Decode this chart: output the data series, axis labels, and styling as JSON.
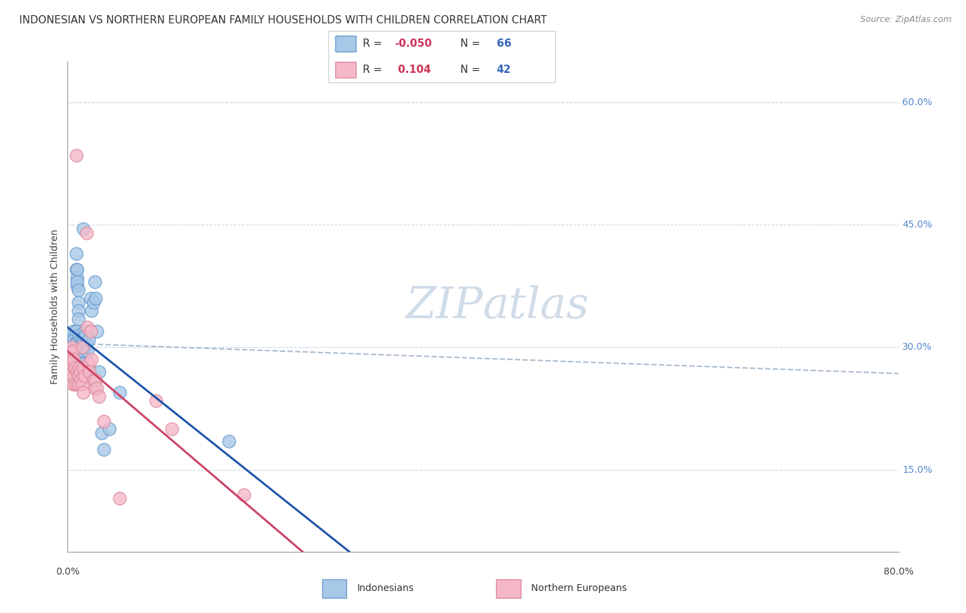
{
  "title": "INDONESIAN VS NORTHERN EUROPEAN FAMILY HOUSEHOLDS WITH CHILDREN CORRELATION CHART",
  "source": "Source: ZipAtlas.com",
  "ylabel": "Family Households with Children",
  "y_ticks_right": [
    "15.0%",
    "30.0%",
    "45.0%",
    "60.0%"
  ],
  "y_tick_values": [
    0.15,
    0.3,
    0.45,
    0.6
  ],
  "xlim": [
    0.0,
    0.8
  ],
  "ylim": [
    0.05,
    0.65
  ],
  "indonesian_color": "#a8c8e8",
  "northern_european_color": "#f4b8c8",
  "indonesian_edge_color": "#6699cc",
  "northern_european_edge_color": "#dd8899",
  "regression_blue": "#2255aa",
  "regression_pink": "#cc4466",
  "reference_line_color": "#aabbcc",
  "watermark_color": "#d0dce8",
  "background_color": "#ffffff",
  "indonesian_points": [
    [
      0.002,
      0.305
    ],
    [
      0.002,
      0.295
    ],
    [
      0.002,
      0.285
    ],
    [
      0.003,
      0.31
    ],
    [
      0.003,
      0.295
    ],
    [
      0.003,
      0.3
    ],
    [
      0.004,
      0.315
    ],
    [
      0.004,
      0.305
    ],
    [
      0.004,
      0.295
    ],
    [
      0.005,
      0.32
    ],
    [
      0.005,
      0.3
    ],
    [
      0.005,
      0.285
    ],
    [
      0.005,
      0.275
    ],
    [
      0.006,
      0.31
    ],
    [
      0.006,
      0.295
    ],
    [
      0.006,
      0.28
    ],
    [
      0.007,
      0.305
    ],
    [
      0.007,
      0.295
    ],
    [
      0.007,
      0.285
    ],
    [
      0.007,
      0.275
    ],
    [
      0.008,
      0.32
    ],
    [
      0.008,
      0.305
    ],
    [
      0.008,
      0.395
    ],
    [
      0.008,
      0.415
    ],
    [
      0.009,
      0.385
    ],
    [
      0.009,
      0.375
    ],
    [
      0.009,
      0.395
    ],
    [
      0.009,
      0.38
    ],
    [
      0.01,
      0.37
    ],
    [
      0.01,
      0.355
    ],
    [
      0.01,
      0.345
    ],
    [
      0.01,
      0.335
    ],
    [
      0.011,
      0.315
    ],
    [
      0.011,
      0.3
    ],
    [
      0.011,
      0.295
    ],
    [
      0.011,
      0.285
    ],
    [
      0.012,
      0.31
    ],
    [
      0.012,
      0.295
    ],
    [
      0.012,
      0.28
    ],
    [
      0.013,
      0.305
    ],
    [
      0.013,
      0.29
    ],
    [
      0.013,
      0.275
    ],
    [
      0.014,
      0.31
    ],
    [
      0.014,
      0.295
    ],
    [
      0.014,
      0.28
    ],
    [
      0.015,
      0.445
    ],
    [
      0.015,
      0.305
    ],
    [
      0.015,
      0.27
    ],
    [
      0.016,
      0.32
    ],
    [
      0.016,
      0.3
    ],
    [
      0.017,
      0.315
    ],
    [
      0.018,
      0.305
    ],
    [
      0.019,
      0.295
    ],
    [
      0.02,
      0.31
    ],
    [
      0.022,
      0.36
    ],
    [
      0.023,
      0.345
    ],
    [
      0.025,
      0.355
    ],
    [
      0.026,
      0.38
    ],
    [
      0.027,
      0.36
    ],
    [
      0.028,
      0.32
    ],
    [
      0.03,
      0.27
    ],
    [
      0.033,
      0.195
    ],
    [
      0.035,
      0.175
    ],
    [
      0.04,
      0.2
    ],
    [
      0.05,
      0.245
    ],
    [
      0.155,
      0.185
    ]
  ],
  "northern_european_points": [
    [
      0.002,
      0.29
    ],
    [
      0.002,
      0.275
    ],
    [
      0.003,
      0.295
    ],
    [
      0.003,
      0.28
    ],
    [
      0.004,
      0.3
    ],
    [
      0.004,
      0.285
    ],
    [
      0.005,
      0.295
    ],
    [
      0.005,
      0.27
    ],
    [
      0.005,
      0.255
    ],
    [
      0.006,
      0.285
    ],
    [
      0.006,
      0.265
    ],
    [
      0.007,
      0.275
    ],
    [
      0.007,
      0.255
    ],
    [
      0.008,
      0.535
    ],
    [
      0.009,
      0.27
    ],
    [
      0.009,
      0.255
    ],
    [
      0.01,
      0.265
    ],
    [
      0.011,
      0.275
    ],
    [
      0.011,
      0.255
    ],
    [
      0.012,
      0.27
    ],
    [
      0.013,
      0.26
    ],
    [
      0.014,
      0.3
    ],
    [
      0.014,
      0.255
    ],
    [
      0.015,
      0.275
    ],
    [
      0.015,
      0.245
    ],
    [
      0.016,
      0.265
    ],
    [
      0.018,
      0.44
    ],
    [
      0.019,
      0.325
    ],
    [
      0.02,
      0.28
    ],
    [
      0.021,
      0.27
    ],
    [
      0.022,
      0.32
    ],
    [
      0.023,
      0.285
    ],
    [
      0.025,
      0.26
    ],
    [
      0.026,
      0.25
    ],
    [
      0.027,
      0.26
    ],
    [
      0.028,
      0.25
    ],
    [
      0.03,
      0.24
    ],
    [
      0.035,
      0.21
    ],
    [
      0.05,
      0.115
    ],
    [
      0.085,
      0.235
    ],
    [
      0.1,
      0.2
    ],
    [
      0.17,
      0.12
    ]
  ],
  "title_fontsize": 11,
  "source_fontsize": 9,
  "axis_label_fontsize": 10,
  "tick_fontsize": 10,
  "legend_fontsize": 11
}
